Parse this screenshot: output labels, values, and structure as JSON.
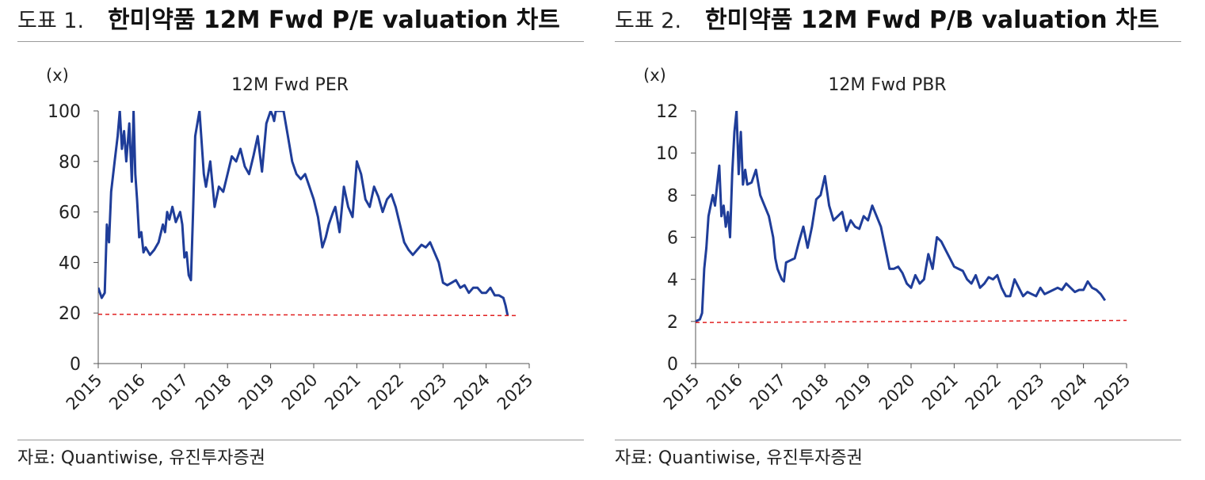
{
  "charts": [
    {
      "figure_number": "도표 1.",
      "figure_title": "한미약품 12M Fwd P/E valuation 차트",
      "source": "자료: Quantiwise, 유진투자증권",
      "chart_data": {
        "type": "line",
        "title": "12M Fwd PER",
        "unit_label": "(x)",
        "xlabel": "",
        "ylabel": "",
        "xlim": [
          2015,
          2025
        ],
        "ylim": [
          0,
          100
        ],
        "yticks": [
          "0",
          "20",
          "40",
          "60",
          "80",
          "100"
        ],
        "xticks": [
          "2015",
          "2016",
          "2017",
          "2018",
          "2019",
          "2020",
          "2021",
          "2022",
          "2023",
          "2024",
          "2025"
        ],
        "series": [
          {
            "name": "12M Fwd PER",
            "color": "#1f3d99",
            "x": [
              2015.0,
              2015.08,
              2015.15,
              2015.2,
              2015.25,
              2015.3,
              2015.38,
              2015.45,
              2015.5,
              2015.55,
              2015.6,
              2015.65,
              2015.72,
              2015.78,
              2015.82,
              2015.86,
              2015.9,
              2015.95,
              2016.0,
              2016.05,
              2016.1,
              2016.2,
              2016.3,
              2016.4,
              2016.5,
              2016.55,
              2016.6,
              2016.65,
              2016.72,
              2016.8,
              2016.85,
              2016.9,
              2016.95,
              2017.0,
              2017.05,
              2017.1,
              2017.15,
              2017.2,
              2017.25,
              2017.35,
              2017.45,
              2017.5,
              2017.6,
              2017.7,
              2017.8,
              2017.9,
              2018.0,
              2018.1,
              2018.2,
              2018.3,
              2018.4,
              2018.5,
              2018.6,
              2018.7,
              2018.8,
              2018.9,
              2019.0,
              2019.05,
              2019.08,
              2019.12,
              2019.2,
              2019.3,
              2019.4,
              2019.5,
              2019.6,
              2019.7,
              2019.8,
              2019.9,
              2020.0,
              2020.1,
              2020.15,
              2020.2,
              2020.28,
              2020.35,
              2020.45,
              2020.5,
              2020.6,
              2020.7,
              2020.8,
              2020.9,
              2021.0,
              2021.1,
              2021.2,
              2021.3,
              2021.4,
              2021.5,
              2021.6,
              2021.7,
              2021.8,
              2021.9,
              2022.0,
              2022.1,
              2022.2,
              2022.3,
              2022.4,
              2022.5,
              2022.6,
              2022.7,
              2022.8,
              2022.9,
              2023.0,
              2023.1,
              2023.2,
              2023.3,
              2023.4,
              2023.5,
              2023.6,
              2023.7,
              2023.8,
              2023.9,
              2024.0,
              2024.1,
              2024.2,
              2024.3,
              2024.4,
              2024.45,
              2024.5
            ],
            "values": [
              30,
              26,
              28,
              55,
              48,
              68,
              80,
              90,
              100,
              85,
              92,
              80,
              95,
              72,
              100,
              75,
              65,
              50,
              52,
              44,
              46,
              43,
              45,
              48,
              55,
              52,
              60,
              57,
              62,
              56,
              58,
              60,
              55,
              42,
              44,
              35,
              33,
              60,
              90,
              100,
              75,
              70,
              80,
              62,
              70,
              68,
              75,
              82,
              80,
              85,
              78,
              75,
              82,
              90,
              76,
              95,
              100,
              98,
              96,
              100,
              100,
              100,
              90,
              80,
              75,
              73,
              75,
              70,
              65,
              58,
              52,
              46,
              50,
              55,
              60,
              62,
              52,
              70,
              62,
              58,
              80,
              75,
              65,
              62,
              70,
              66,
              60,
              65,
              67,
              62,
              55,
              48,
              45,
              43,
              45,
              47,
              46,
              48,
              44,
              40,
              32,
              31,
              32,
              33,
              30,
              31,
              28,
              30,
              30,
              28,
              28,
              30,
              27,
              27,
              26,
              23,
              19
            ]
          },
          {
            "name": "reference",
            "color": "#e02020",
            "style": "dashed",
            "x": [
              2015.0,
              2024.75
            ],
            "values": [
              19.5,
              19.0
            ]
          }
        ]
      }
    },
    {
      "figure_number": "도표 2.",
      "figure_title": "한미약품 12M Fwd P/B valuation 차트",
      "source": "자료: Quantiwise, 유진투자증권",
      "chart_data": {
        "type": "line",
        "title": "12M Fwd PBR",
        "unit_label": "(x)",
        "xlabel": "",
        "ylabel": "",
        "xlim": [
          2015,
          2025
        ],
        "ylim": [
          0,
          12
        ],
        "yticks": [
          "0",
          "2",
          "4",
          "6",
          "8",
          "10",
          "12"
        ],
        "xticks": [
          "2015",
          "2016",
          "2017",
          "2018",
          "2019",
          "2020",
          "2021",
          "2022",
          "2023",
          "2024",
          "2025"
        ],
        "series": [
          {
            "name": "12M Fwd PBR",
            "color": "#1f3d99",
            "x": [
              2015.0,
              2015.1,
              2015.15,
              2015.2,
              2015.25,
              2015.3,
              2015.35,
              2015.4,
              2015.45,
              2015.5,
              2015.55,
              2015.6,
              2015.65,
              2015.7,
              2015.75,
              2015.8,
              2015.85,
              2015.9,
              2015.95,
              2016.0,
              2016.05,
              2016.1,
              2016.15,
              2016.2,
              2016.3,
              2016.4,
              2016.5,
              2016.6,
              2016.7,
              2016.8,
              2016.85,
              2016.9,
              2017.0,
              2017.05,
              2017.1,
              2017.2,
              2017.3,
              2017.4,
              2017.5,
              2017.6,
              2017.7,
              2017.8,
              2017.9,
              2018.0,
              2018.05,
              2018.1,
              2018.2,
              2018.3,
              2018.4,
              2018.5,
              2018.6,
              2018.7,
              2018.8,
              2018.9,
              2019.0,
              2019.1,
              2019.2,
              2019.3,
              2019.4,
              2019.5,
              2019.6,
              2019.7,
              2019.8,
              2019.9,
              2020.0,
              2020.1,
              2020.2,
              2020.3,
              2020.4,
              2020.5,
              2020.6,
              2020.7,
              2020.8,
              2020.9,
              2021.0,
              2021.1,
              2021.2,
              2021.3,
              2021.4,
              2021.5,
              2021.6,
              2021.7,
              2021.8,
              2021.9,
              2022.0,
              2022.1,
              2022.2,
              2022.3,
              2022.4,
              2022.5,
              2022.6,
              2022.7,
              2022.8,
              2022.9,
              2023.0,
              2023.1,
              2023.2,
              2023.3,
              2023.4,
              2023.5,
              2023.6,
              2023.7,
              2023.8,
              2023.9,
              2024.0,
              2024.1,
              2024.2,
              2024.3,
              2024.4,
              2024.5
            ],
            "values": [
              2.0,
              2.1,
              2.4,
              4.5,
              5.5,
              7.0,
              7.5,
              8.0,
              7.5,
              8.5,
              9.4,
              7.0,
              7.5,
              6.5,
              7.2,
              6.0,
              9.0,
              11.0,
              12.0,
              9.0,
              11.0,
              8.5,
              9.2,
              8.5,
              8.6,
              9.2,
              8.0,
              7.5,
              7.0,
              6.0,
              5.0,
              4.5,
              4.0,
              3.9,
              4.8,
              4.9,
              5.0,
              5.8,
              6.5,
              5.5,
              6.5,
              7.8,
              8.0,
              8.9,
              8.2,
              7.5,
              6.8,
              7.0,
              7.2,
              6.3,
              6.8,
              6.5,
              6.4,
              7.0,
              6.8,
              7.5,
              7.0,
              6.5,
              5.5,
              4.5,
              4.5,
              4.6,
              4.3,
              3.8,
              3.6,
              4.2,
              3.8,
              4.0,
              5.2,
              4.5,
              6.0,
              5.8,
              5.4,
              5.0,
              4.6,
              4.5,
              4.4,
              4.0,
              3.8,
              4.2,
              3.6,
              3.8,
              4.1,
              4.0,
              4.2,
              3.6,
              3.2,
              3.2,
              4.0,
              3.6,
              3.2,
              3.4,
              3.3,
              3.2,
              3.6,
              3.3,
              3.4,
              3.5,
              3.6,
              3.5,
              3.8,
              3.6,
              3.4,
              3.5,
              3.5,
              3.9,
              3.6,
              3.5,
              3.3,
              3.0
            ]
          },
          {
            "name": "reference",
            "color": "#e02020",
            "style": "dashed",
            "x": [
              2015.0,
              2025.0
            ],
            "values": [
              1.95,
              2.05
            ]
          }
        ]
      }
    }
  ]
}
